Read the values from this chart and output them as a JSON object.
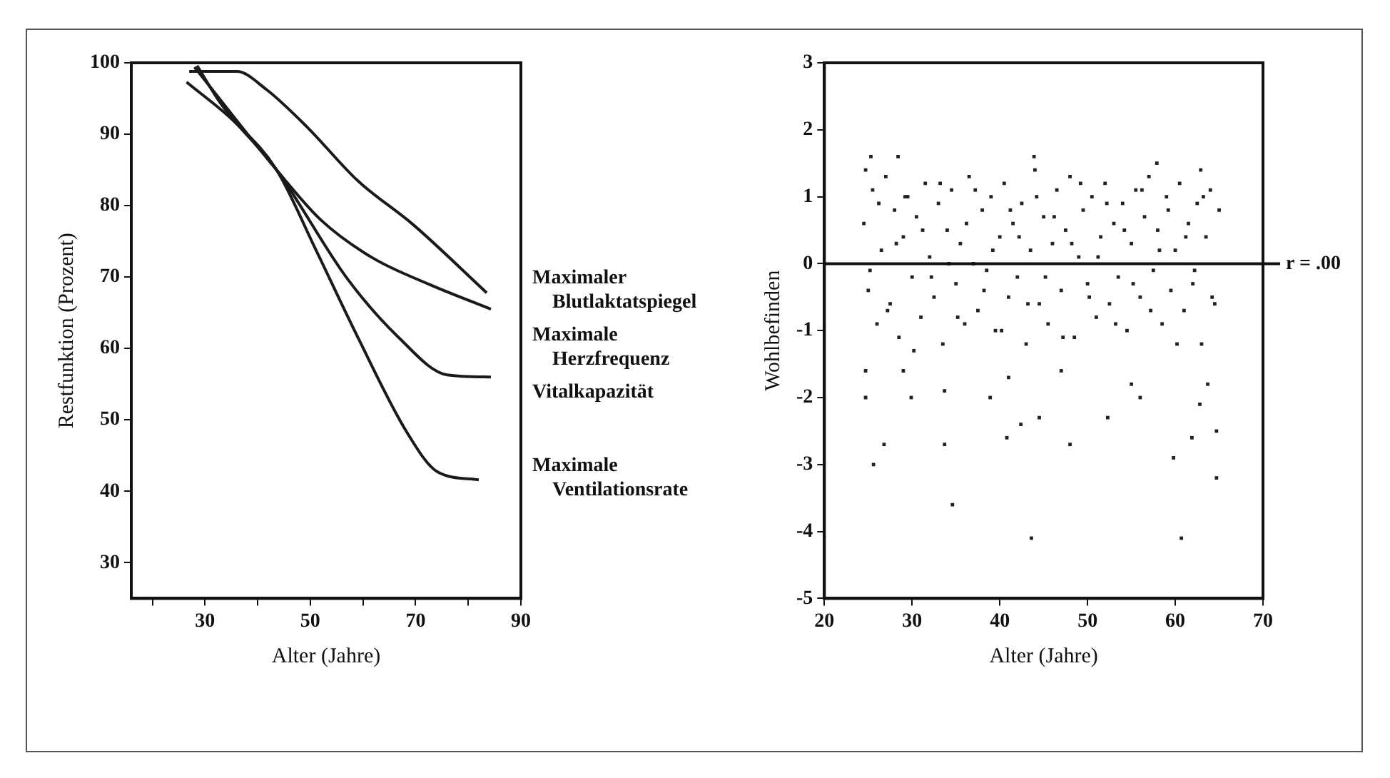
{
  "chart_data": [
    {
      "type": "line",
      "xlabel": "Alter (Jahre)",
      "ylabel": "Restfunktion (Prozent)",
      "xlim": [
        16,
        90
      ],
      "ylim": [
        25,
        100
      ],
      "xticks": [
        {
          "value": 20,
          "label": null
        },
        30,
        {
          "value": 40,
          "label": null
        },
        50,
        {
          "value": 60,
          "label": null
        },
        70,
        {
          "value": 80,
          "label": null
        },
        90
      ],
      "yticks": [
        30,
        40,
        50,
        60,
        70,
        80,
        90,
        100
      ],
      "legend": false,
      "marker": "none",
      "line_style": "solid",
      "series": [
        {
          "name": "Maximaler Blutlaktatspiegel",
          "color": "#1a1a1a",
          "x": [
            27,
            36,
            41.6,
            49.4,
            59,
            69.6,
            83.5
          ],
          "values": [
            98.8,
            98.8,
            96.3,
            91,
            83.5,
            77.3,
            67.8
          ]
        },
        {
          "name": "Maximale Herzfrequenz",
          "color": "#1a1a1a",
          "x": [
            28,
            43.6,
            52,
            61.8,
            72.5,
            84.3
          ],
          "values": [
            99.4,
            85,
            78,
            72.7,
            69,
            65.5
          ]
        },
        {
          "name": "Vitalkapazität",
          "color": "#1a1a1a",
          "x": [
            28.5,
            33,
            43.6,
            57,
            66.7,
            76,
            84.3
          ],
          "values": [
            99.6,
            94.3,
            85,
            69.8,
            61.6,
            56.3,
            56
          ]
        },
        {
          "name": "Maximale Ventilationsrate",
          "color": "#1a1a1a",
          "x": [
            26.5,
            35.8,
            43.6,
            51,
            59,
            68.4,
            74.2,
            82
          ],
          "values": [
            97.3,
            91.6,
            85,
            73.9,
            61.6,
            48.2,
            42.7,
            41.6
          ]
        }
      ]
    },
    {
      "type": "scatter",
      "xlabel": "Alter (Jahre)",
      "ylabel": "Wohlbefinden",
      "xlim": [
        20,
        70
      ],
      "ylim": [
        -5,
        3
      ],
      "xticks": [
        20,
        30,
        40,
        50,
        60,
        70
      ],
      "yticks": [
        -5,
        -4,
        -3,
        -2,
        -1,
        0,
        1,
        2,
        3
      ],
      "legend": false,
      "marker": "square",
      "ref_lines": [
        {
          "axis": "y",
          "value": 0,
          "label": "r = .00"
        }
      ],
      "series": [
        {
          "color": "#222222",
          "x": [
            24.5,
            25,
            25.5,
            26,
            26.5,
            27,
            27.5,
            28,
            28.5,
            29,
            29.5,
            30,
            30.5,
            31,
            31.5,
            32,
            32.5,
            33,
            33.5,
            34,
            34.5,
            35,
            35.5,
            36,
            36.5,
            37,
            37.5,
            38,
            38.5,
            39,
            39.5,
            40,
            40.5,
            41,
            41.5,
            42,
            42.5,
            43,
            43.5,
            44,
            44.5,
            45,
            45.5,
            46,
            46.5,
            47,
            47.5,
            48,
            48.5,
            49,
            49.5,
            50,
            50.5,
            51,
            51.5,
            52,
            52.5,
            53,
            53.5,
            54,
            54.5,
            55,
            55.5,
            56,
            56.5,
            57,
            57.5,
            58,
            58.5,
            59,
            59.5,
            60,
            60.5,
            61,
            61.5,
            62,
            62.5,
            63,
            63.5,
            64,
            64.5,
            65,
            25.2,
            26.2,
            27.2,
            28.2,
            29.2,
            30.2,
            31.2,
            32.2,
            33.2,
            34.2,
            35.2,
            36.2,
            37.2,
            38.2,
            39.2,
            40.2,
            41.2,
            42.2,
            43.2,
            44.2,
            45.2,
            46.2,
            47.2,
            48.2,
            49.2,
            50.2,
            51.2,
            52.2,
            53.2,
            54.2,
            55.2,
            56.2,
            57.2,
            58.2,
            59.2,
            60.2,
            61.2,
            62.2,
            63.2,
            64.2,
            25.6,
            26.8,
            33.7,
            34.6,
            43.6,
            60.7,
            64.7,
            59.8,
            61.9,
            64.7,
            48,
            40.8,
            42.4,
            24.7,
            29.9,
            33.7,
            38.9,
            44.5,
            52.3,
            56,
            62.8,
            24.7,
            29,
            41,
            47,
            55,
            63.7,
            25.3,
            28.4,
            43.9,
            57.9,
            62.9,
            24.7
          ],
          "values": [
            0.6,
            -0.4,
            1.1,
            -0.9,
            0.2,
            1.3,
            -0.6,
            0.8,
            -1.1,
            0.4,
            1.0,
            -0.2,
            0.7,
            -0.8,
            1.2,
            0.1,
            -0.5,
            0.9,
            -1.2,
            0.5,
            1.1,
            -0.3,
            0.3,
            -0.9,
            1.3,
            0.0,
            -0.7,
            0.8,
            -0.1,
            1.0,
            -1.0,
            0.4,
            1.2,
            -0.5,
            0.6,
            -0.2,
            0.9,
            -1.2,
            0.2,
            1.4,
            -0.6,
            0.7,
            -0.9,
            0.3,
            1.1,
            -0.4,
            0.5,
            1.3,
            -1.1,
            0.1,
            0.8,
            -0.3,
            1.0,
            -0.8,
            0.4,
            1.2,
            -0.6,
            0.6,
            -0.2,
            0.9,
            -1.0,
            0.3,
            1.1,
            -0.5,
            0.7,
            1.3,
            -0.1,
            0.5,
            -0.9,
            1.0,
            -0.4,
            0.2,
            1.2,
            -0.7,
            0.6,
            -0.3,
            0.9,
            -1.2,
            0.4,
            1.1,
            -0.6,
            0.8,
            -0.1,
            0.9,
            -0.7,
            0.3,
            1.0,
            -1.3,
            0.5,
            -0.2,
            1.2,
            0.0,
            -0.8,
            0.6,
            1.1,
            -0.4,
            0.2,
            -1.0,
            0.8,
            0.4,
            -0.6,
            1.0,
            -0.2,
            0.7,
            -1.1,
            0.3,
            1.2,
            -0.5,
            0.1,
            0.9,
            -0.9,
            0.5,
            -0.3,
            1.1,
            -0.7,
            0.2,
            0.8,
            -1.2,
            0.4,
            -0.1,
            1.0,
            -0.5,
            -3.0,
            -2.7,
            -2.7,
            -3.6,
            -4.1,
            -4.1,
            -3.2,
            -2.9,
            -2.6,
            -2.5,
            -2.7,
            -2.6,
            -2.4,
            -2,
            -2,
            -1.9,
            -2,
            -2.3,
            -2.3,
            -2,
            -2.1,
            -1.6,
            -1.6,
            -1.7,
            -1.6,
            -1.8,
            -1.8,
            1.6,
            1.6,
            1.6,
            1.5,
            1.4,
            1.4
          ]
        }
      ]
    }
  ]
}
